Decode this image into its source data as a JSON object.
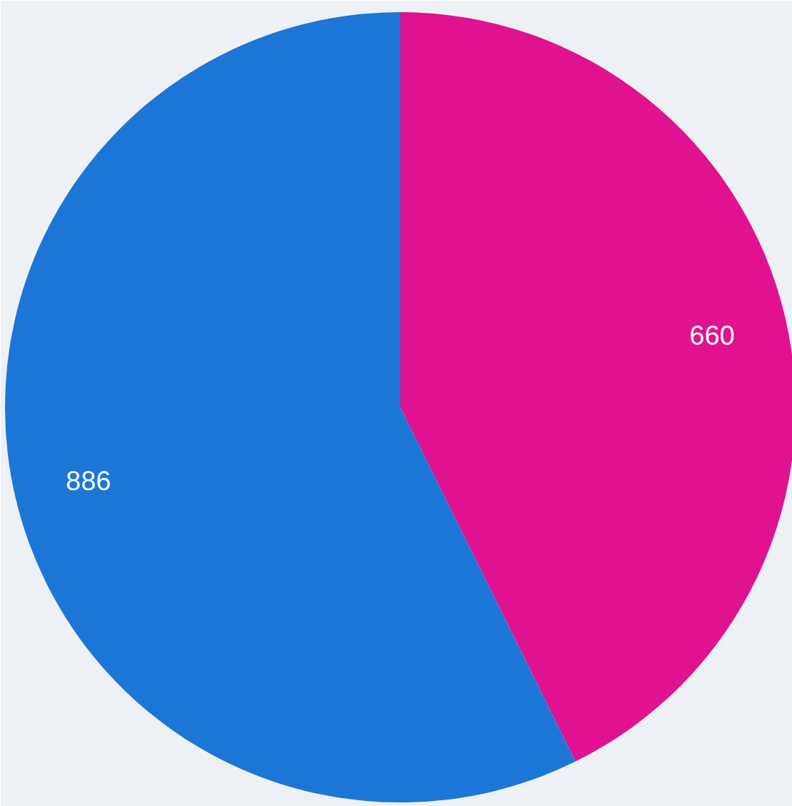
{
  "chart_data": {
    "type": "pie",
    "categories": [
      null,
      null
    ],
    "values": [
      660,
      886
    ],
    "colors": [
      "#e0128f",
      "#1b76d8"
    ],
    "data_labels": true
  }
}
